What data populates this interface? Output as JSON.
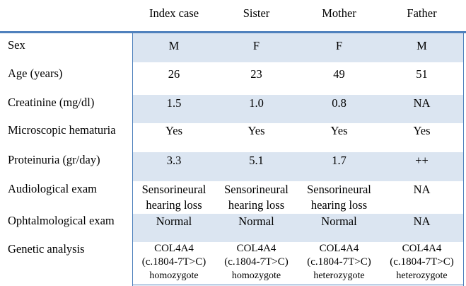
{
  "header": {
    "col1": "Index case",
    "col2": "Sister",
    "col3": "Mother",
    "col4": "Father"
  },
  "rows": [
    {
      "label": "Sex",
      "values": [
        "M",
        "F",
        "F",
        "M"
      ]
    },
    {
      "label": "Age (years)",
      "values": [
        "26",
        "23",
        "49",
        "51"
      ]
    },
    {
      "label": "Creatinine (mg/dl)",
      "values": [
        "1.5",
        "1.0",
        "0.8",
        "NA"
      ]
    },
    {
      "label": "Microscopic hematuria",
      "values": [
        "Yes",
        "Yes",
        "Yes",
        "Yes"
      ]
    },
    {
      "label": "Proteinuria (gr/day)",
      "values": [
        "3.3",
        "5.1",
        "1.7",
        "++"
      ]
    },
    {
      "label": "Audiological exam",
      "values": [
        [
          "Sensorineural",
          "hearing loss"
        ],
        [
          "Sensorineural",
          "hearing loss"
        ],
        [
          "Sensorineural",
          "hearing loss"
        ],
        [
          "NA",
          ""
        ]
      ]
    },
    {
      "label": "Ophtalmological exam",
      "values": [
        "Normal",
        "Normal",
        "Normal",
        "NA"
      ]
    },
    {
      "label": "Genetic analysis",
      "values": [
        [
          "COL4A4",
          "(c.1804-7T>C)",
          "homozygote"
        ],
        [
          "COL4A4",
          "(c.1804-7T>C)",
          "homozygote"
        ],
        [
          "COL4A4",
          "(c.1804-7T>C)",
          "heterozygote"
        ],
        [
          "COL4A4",
          "(c.1804-7T>C)",
          "heterozygote"
        ]
      ]
    }
  ],
  "colors": {
    "accent": "#4f81bd",
    "shade": "#dbe5f1"
  }
}
